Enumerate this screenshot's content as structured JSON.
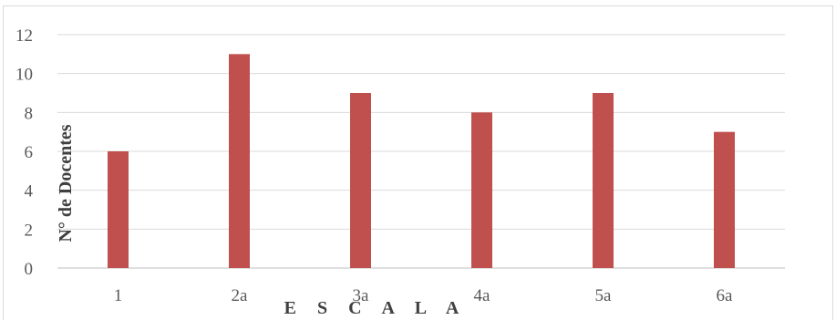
{
  "chart_data": {
    "type": "bar",
    "categories": [
      "1",
      "2a",
      "3a",
      "4a",
      "5a",
      "6a"
    ],
    "values": [
      6,
      11,
      9,
      8,
      9,
      7
    ],
    "title": "",
    "xlabel": "E S C A L A",
    "ylabel": "N° de Docentes",
    "ylim": [
      0,
      12
    ],
    "yticks": [
      "0",
      "2",
      "4",
      "6",
      "8",
      "10",
      "12"
    ],
    "grid": true,
    "legend": "none",
    "bar_color": "#c0504d",
    "grid_color": "#d9d9d9",
    "axis_color": "#bfbfbf"
  }
}
